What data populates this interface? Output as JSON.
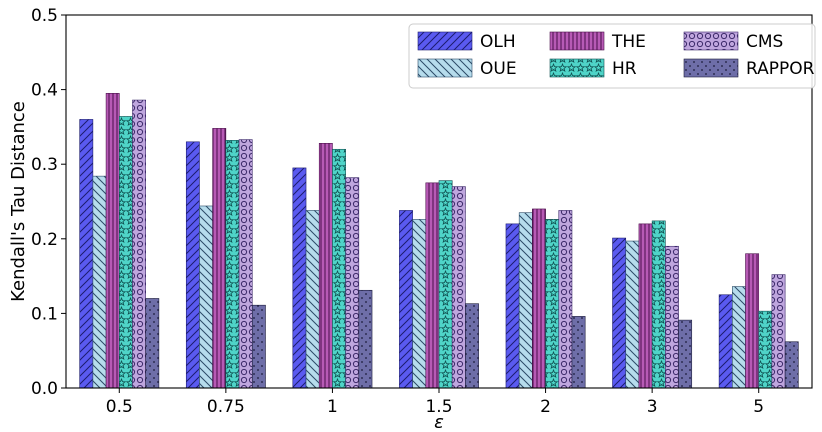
{
  "chart_data": {
    "type": "bar",
    "title": "",
    "xlabel": "ε",
    "ylabel": "Kendall's Tau Distance",
    "categories": [
      "0.5",
      "0.75",
      "1",
      "1.5",
      "2",
      "3",
      "5"
    ],
    "ylim": [
      0,
      0.5
    ],
    "yticks": [
      "0.0",
      "0.1",
      "0.2",
      "0.3",
      "0.4",
      "0.5"
    ],
    "ytick_values": [
      0.0,
      0.1,
      0.2,
      0.3,
      0.4,
      0.5
    ],
    "grid": false,
    "legend_position": "top-right",
    "legend_columns": 3,
    "series": [
      {
        "name": "OLH",
        "color": "#5a5af0",
        "pattern": "diagonal-hatch",
        "values": [
          0.36,
          0.33,
          0.295,
          0.238,
          0.22,
          0.201,
          0.125
        ]
      },
      {
        "name": "OUE",
        "color": "#b6dcec",
        "pattern": "backslash-hatch",
        "values": [
          0.284,
          0.244,
          0.238,
          0.226,
          0.235,
          0.197,
          0.136
        ]
      },
      {
        "name": "THE",
        "color": "#b75ab5",
        "pattern": "vertical-lines",
        "values": [
          0.395,
          0.348,
          0.328,
          0.275,
          0.24,
          0.22,
          0.18
        ]
      },
      {
        "name": "HR",
        "color": "#4fd4c8",
        "pattern": "stars",
        "values": [
          0.364,
          0.332,
          0.32,
          0.278,
          0.226,
          0.224,
          0.103
        ]
      },
      {
        "name": "CMS",
        "color": "#bfa6de",
        "pattern": "circles",
        "values": [
          0.386,
          0.333,
          0.282,
          0.27,
          0.238,
          0.19,
          0.152
        ]
      },
      {
        "name": "RAPPOR",
        "color": "#6e6ea8",
        "pattern": "dots",
        "values": [
          0.12,
          0.111,
          0.131,
          0.113,
          0.096,
          0.091,
          0.062
        ]
      }
    ]
  }
}
